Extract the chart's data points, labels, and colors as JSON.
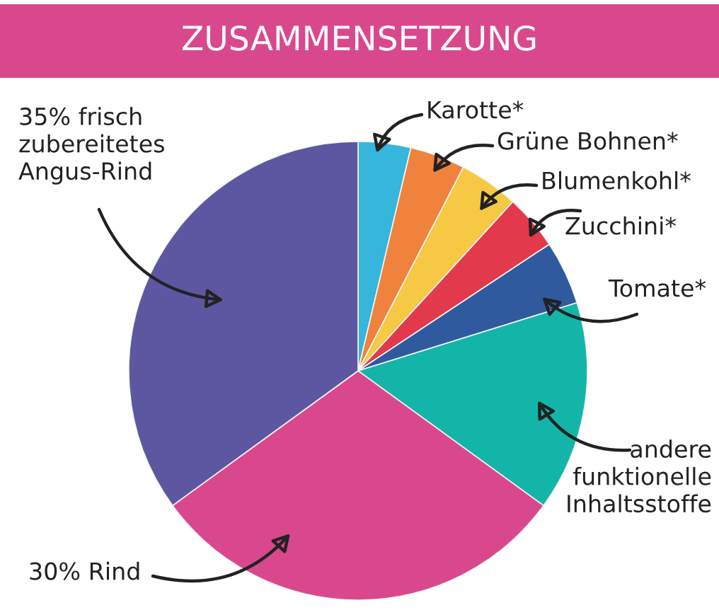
{
  "chart_data": {
    "type": "pie",
    "title": "ZUSAMMENSETZUNG",
    "categories": [
      "Karotte*",
      "Grüne Bohnen*",
      "Blumenkohl*",
      "Zucchini*",
      "Tomate*",
      "andere\nfunktionelle\nInhaltsstoffe",
      "30% Rind",
      "35% frisch\nzubereitetes\nAngus-Rind"
    ],
    "values": [
      3.7,
      3.9,
      4.2,
      3.9,
      4.5,
      14.8,
      30,
      35
    ],
    "colors": [
      "#36b5dd",
      "#ef823c",
      "#f6c843",
      "#e23a4c",
      "#2f5a9e",
      "#14b5a9",
      "#d9488d",
      "#5d57a1"
    ]
  }
}
